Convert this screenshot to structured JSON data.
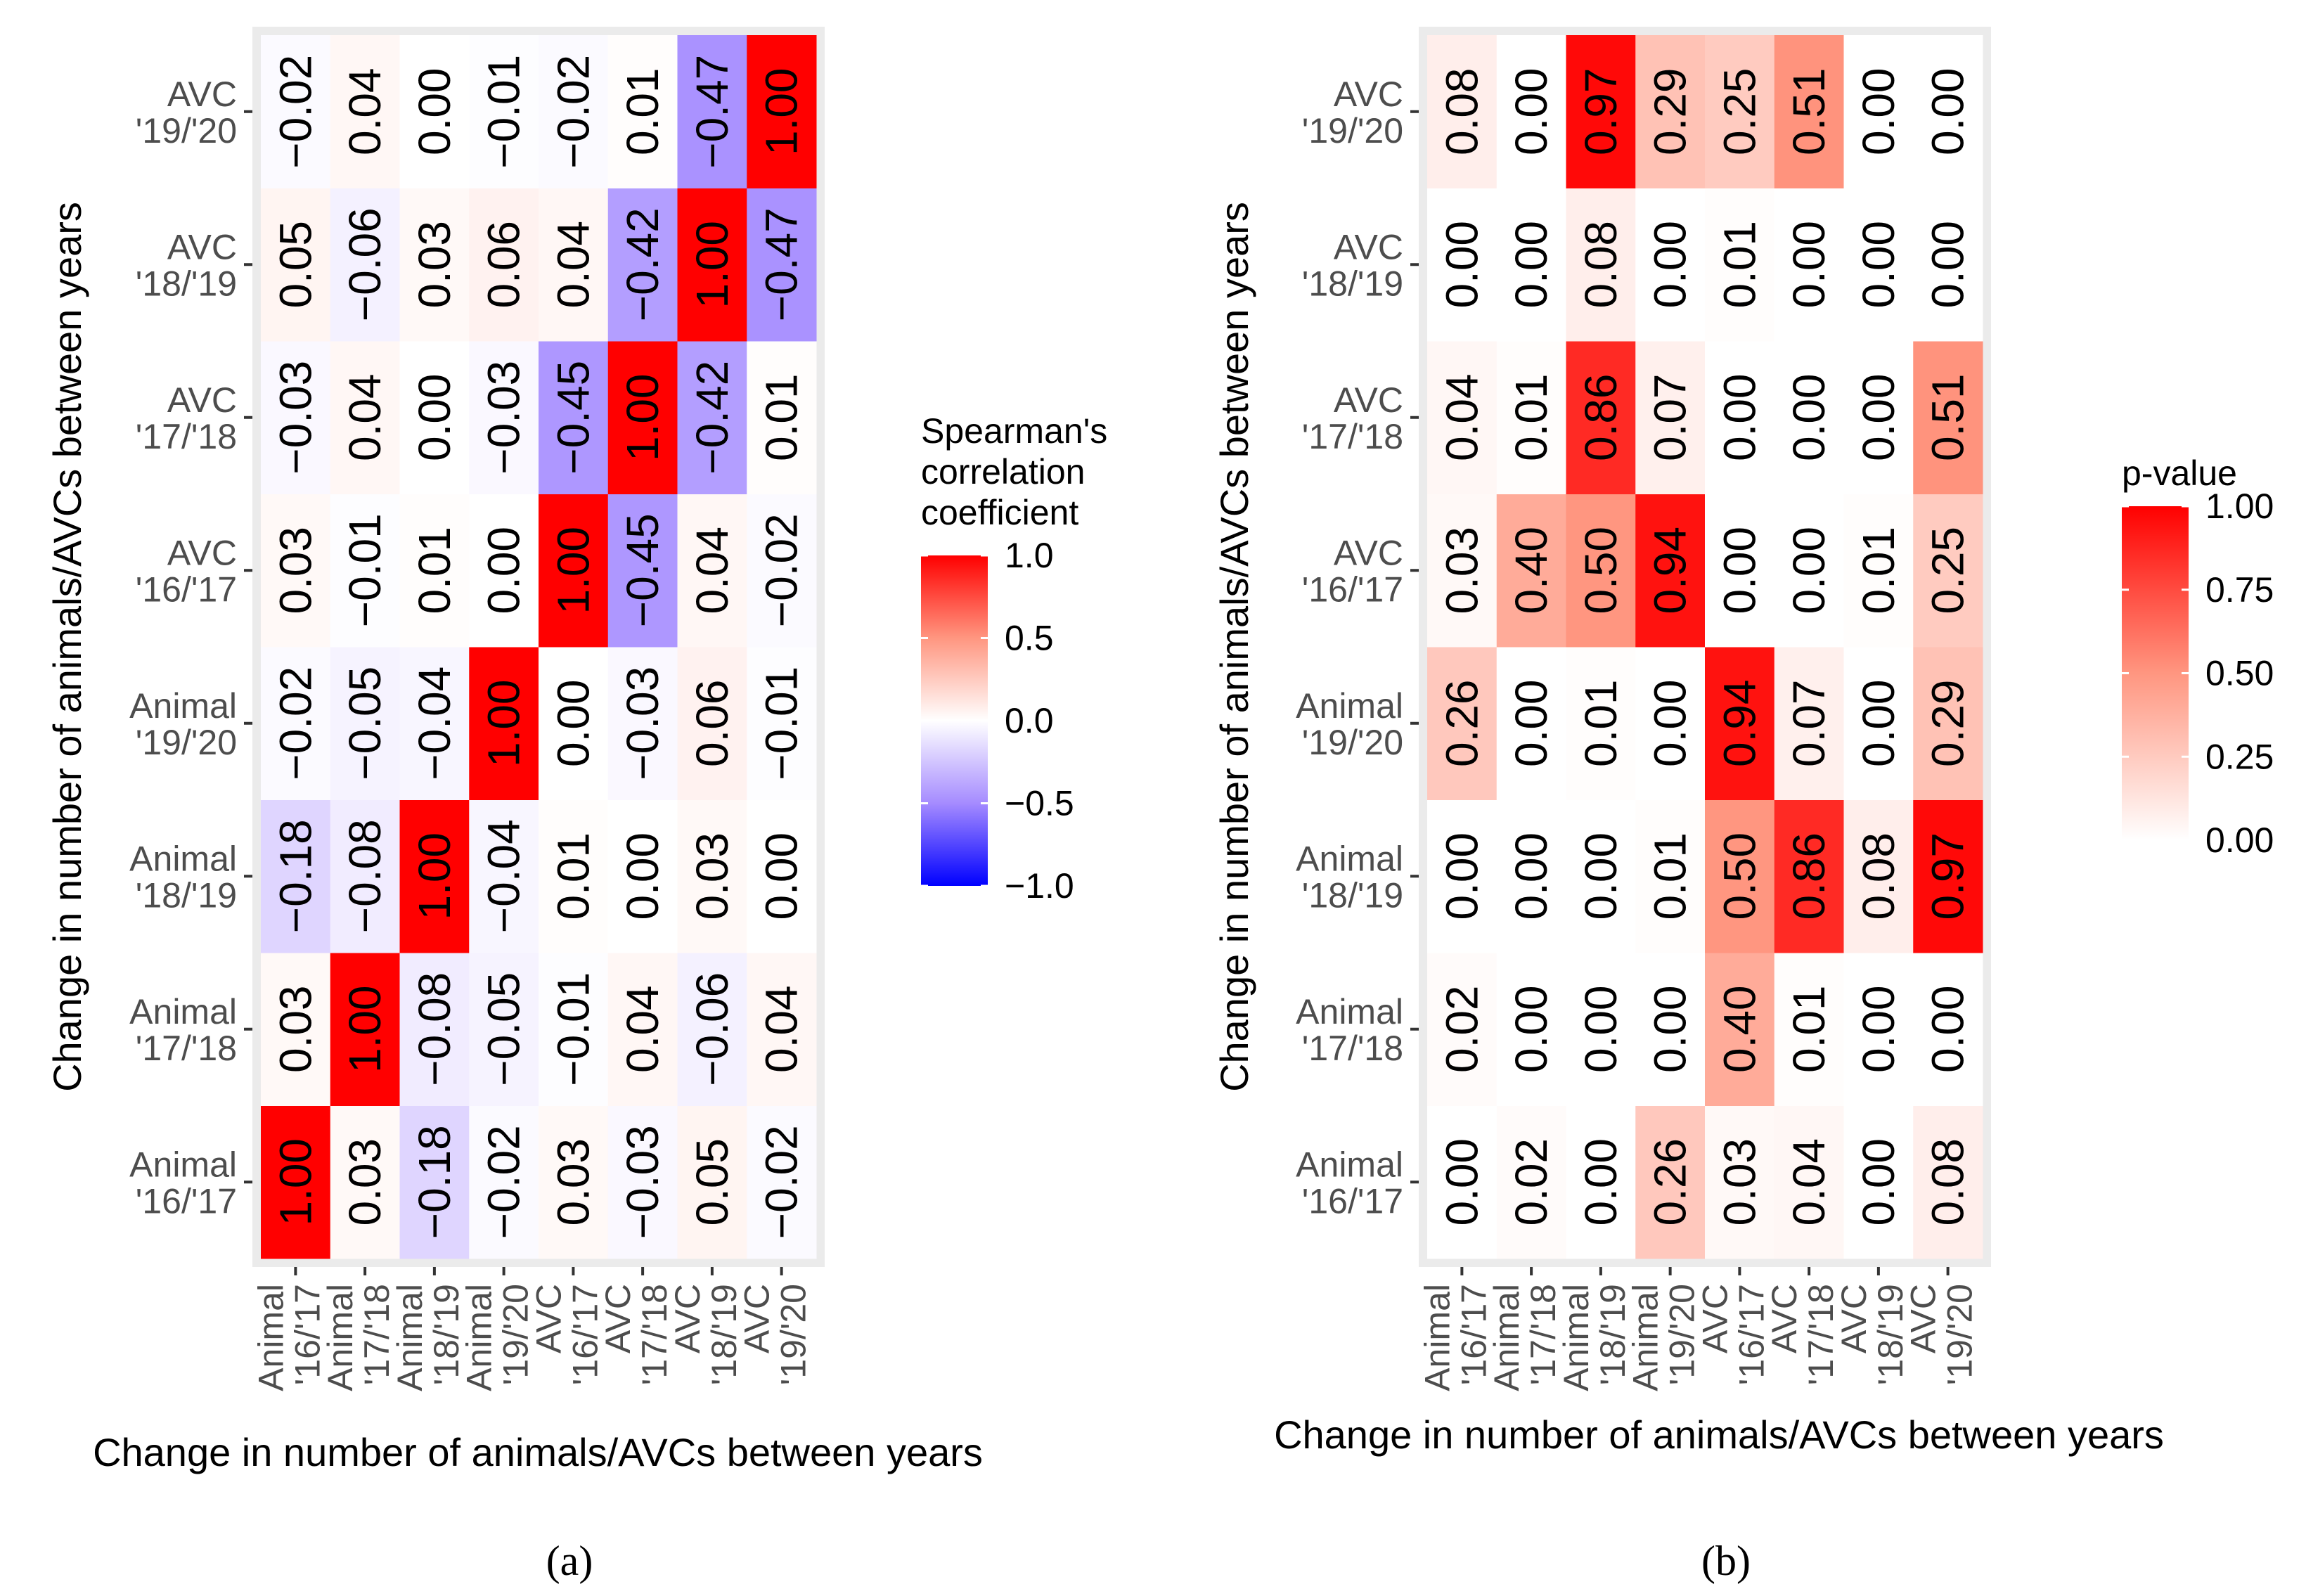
{
  "captions": {
    "a": "(a)",
    "b": "(b)"
  },
  "chart_data": [
    {
      "id": "a",
      "type": "heatmap",
      "xlabel": "Change in number of animals/AVCs between years",
      "ylabel": "Change in number of animals/AVCs between years",
      "categories": [
        [
          "Animal",
          "'16/'17"
        ],
        [
          "Animal",
          "'17/'18"
        ],
        [
          "Animal",
          "'18/'19"
        ],
        [
          "Animal",
          "'19/'20"
        ],
        [
          "AVC",
          "'16/'17"
        ],
        [
          "AVC",
          "'17/'18"
        ],
        [
          "AVC",
          "'18/'19"
        ],
        [
          "AVC",
          "'19/'20"
        ]
      ],
      "values": [
        [
          1.0,
          0.03,
          -0.18,
          -0.02,
          0.03,
          -0.03,
          0.05,
          -0.02
        ],
        [
          0.03,
          1.0,
          -0.08,
          -0.05,
          -0.01,
          0.04,
          -0.06,
          0.04
        ],
        [
          -0.18,
          -0.08,
          1.0,
          -0.04,
          0.01,
          0.0,
          0.03,
          0.0
        ],
        [
          -0.02,
          -0.05,
          -0.04,
          1.0,
          0.0,
          -0.03,
          0.06,
          -0.01
        ],
        [
          0.03,
          -0.01,
          0.01,
          0.0,
          1.0,
          -0.45,
          0.04,
          -0.02
        ],
        [
          -0.03,
          0.04,
          0.0,
          -0.03,
          -0.45,
          1.0,
          -0.42,
          0.01
        ],
        [
          0.05,
          -0.06,
          0.03,
          0.06,
          0.04,
          -0.42,
          1.0,
          -0.47
        ],
        [
          -0.02,
          0.04,
          0.0,
          -0.01,
          -0.02,
          0.01,
          -0.47,
          1.0
        ]
      ],
      "legend": {
        "title": [
          "Spearman's",
          "correlation",
          "coefficient"
        ],
        "range": [
          -1.0,
          1.0
        ],
        "ticks": [
          1.0,
          0.5,
          0.0,
          -0.5,
          -1.0
        ],
        "tick_labels": [
          "1.0",
          "0.5",
          "0.0",
          "−0.5",
          "−1.0"
        ],
        "colors": {
          "low": "#0000ff",
          "mid": "#ffffff",
          "high": "#ff0000"
        }
      }
    },
    {
      "id": "b",
      "type": "heatmap",
      "xlabel": "Change in number of animals/AVCs between years",
      "ylabel": "Change in number of animals/AVCs between years",
      "categories": [
        [
          "Animal",
          "'16/'17"
        ],
        [
          "Animal",
          "'17/'18"
        ],
        [
          "Animal",
          "'18/'19"
        ],
        [
          "Animal",
          "'19/'20"
        ],
        [
          "AVC",
          "'16/'17"
        ],
        [
          "AVC",
          "'17/'18"
        ],
        [
          "AVC",
          "'18/'19"
        ],
        [
          "AVC",
          "'19/'20"
        ]
      ],
      "values": [
        [
          0.0,
          0.02,
          0.0,
          0.26,
          0.03,
          0.04,
          0.0,
          0.08
        ],
        [
          0.02,
          0.0,
          0.0,
          0.0,
          0.4,
          0.01,
          0.0,
          0.0
        ],
        [
          0.0,
          0.0,
          0.0,
          0.01,
          0.5,
          0.86,
          0.08,
          0.97
        ],
        [
          0.26,
          0.0,
          0.01,
          0.0,
          0.94,
          0.07,
          0.0,
          0.29
        ],
        [
          0.03,
          0.4,
          0.5,
          0.94,
          0.0,
          0.0,
          0.01,
          0.25
        ],
        [
          0.04,
          0.01,
          0.86,
          0.07,
          0.0,
          0.0,
          0.0,
          0.51
        ],
        [
          0.0,
          0.0,
          0.08,
          0.0,
          0.01,
          0.0,
          0.0,
          0.0
        ],
        [
          0.08,
          0.0,
          0.97,
          0.29,
          0.25,
          0.51,
          0.0,
          0.0
        ]
      ],
      "legend": {
        "title": [
          "p-value"
        ],
        "range": [
          0.0,
          1.0
        ],
        "ticks": [
          1.0,
          0.75,
          0.5,
          0.25,
          0.0
        ],
        "tick_labels": [
          "1.00",
          "0.75",
          "0.50",
          "0.25",
          "0.00"
        ],
        "colors": {
          "low": "#ffffff",
          "high": "#ff0000"
        }
      }
    }
  ]
}
